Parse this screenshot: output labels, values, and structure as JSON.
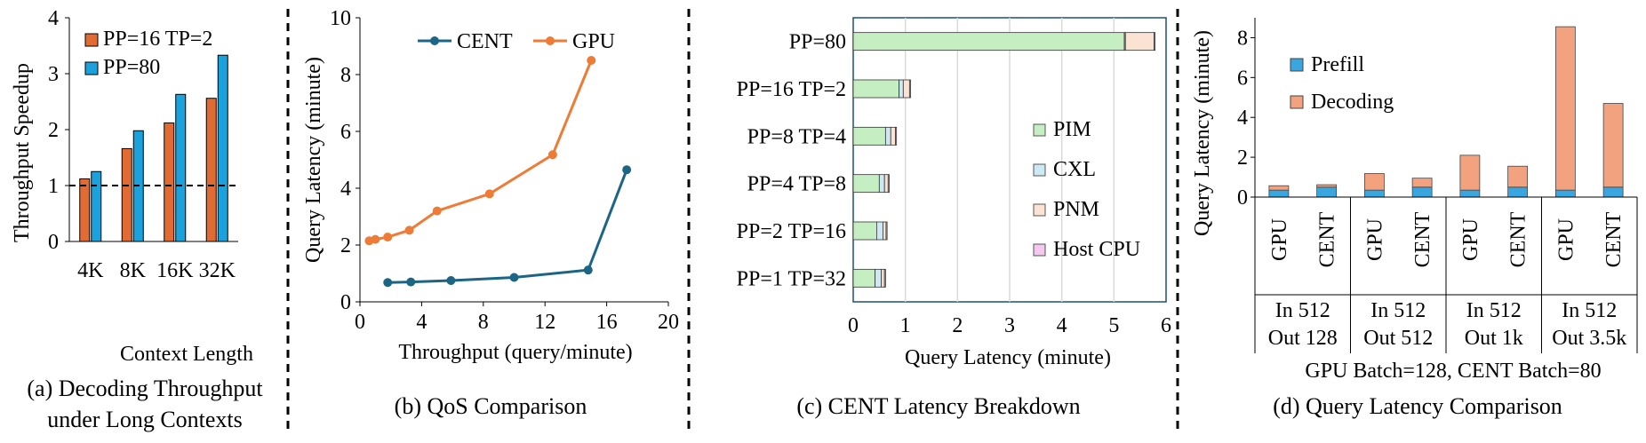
{
  "colors": {
    "orange": "#e06c33",
    "blue": "#1ba1dc",
    "cent_line": "#1d6584",
    "gpu_line": "#ee7b36",
    "pim": "#c6eec3",
    "cxl": "#cdeaf4",
    "pnm": "#fbe3d3",
    "host": "#f4c9f0",
    "prefill": "#3aa6df",
    "decoding": "#f2a27e",
    "frame": "#1f4e79"
  },
  "chart_data": [
    {
      "id": "a",
      "type": "bar",
      "caption": [
        "(a) Decoding Throughput",
        "under Long Contexts"
      ],
      "xlabel": "Context Length",
      "ylabel": "Throughput Speedup",
      "categories": [
        "4K",
        "8K",
        "16K",
        "32K"
      ],
      "yticks": [
        "0",
        "1",
        "2",
        "3",
        "4"
      ],
      "ylim": [
        0,
        4
      ],
      "baseline": 1,
      "series": [
        {
          "name": "PP=16 TP=2",
          "values": [
            1.12,
            1.66,
            2.12,
            2.56
          ]
        },
        {
          "name": "PP=80",
          "values": [
            1.25,
            1.98,
            2.63,
            3.33
          ]
        }
      ]
    },
    {
      "id": "b",
      "type": "line",
      "caption": "(b) QoS Comparison",
      "xlabel": "Throughput (query/minute)",
      "ylabel": "Query Latency (minute)",
      "xticks": [
        "0",
        "4",
        "8",
        "12",
        "16",
        "20"
      ],
      "yticks": [
        "0",
        "2",
        "4",
        "6",
        "8",
        "10"
      ],
      "xlim": [
        0,
        20
      ],
      "ylim": [
        0,
        10
      ],
      "series": [
        {
          "name": "CENT",
          "x": [
            1.8,
            3.3,
            5.9,
            10.0,
            14.8,
            17.3
          ],
          "y": [
            0.68,
            0.7,
            0.75,
            0.86,
            1.12,
            4.65
          ]
        },
        {
          "name": "GPU",
          "x": [
            0.6,
            1.0,
            1.8,
            3.2,
            5.0,
            8.4,
            12.5,
            15.0
          ],
          "y": [
            2.15,
            2.2,
            2.28,
            2.52,
            3.2,
            3.8,
            5.18,
            8.5
          ]
        }
      ]
    },
    {
      "id": "c",
      "type": "bar",
      "orientation": "horizontal-stacked",
      "caption": "(c) CENT Latency Breakdown",
      "xlabel": "Query Latency (minute)",
      "xticks": [
        "0",
        "1",
        "2",
        "3",
        "4",
        "5",
        "6"
      ],
      "xlim": [
        0,
        6
      ],
      "categories": [
        "PP=80",
        "PP=16 TP=2",
        "PP=8 TP=4",
        "PP=4 TP=8",
        "PP=2 TP=16",
        "PP=1 TP=32"
      ],
      "series": [
        {
          "name": "PIM",
          "values": [
            5.2,
            0.88,
            0.62,
            0.5,
            0.45,
            0.42
          ]
        },
        {
          "name": "CXL",
          "values": [
            0.02,
            0.08,
            0.1,
            0.1,
            0.12,
            0.12
          ]
        },
        {
          "name": "PNM",
          "values": [
            0.55,
            0.12,
            0.09,
            0.07,
            0.06,
            0.06
          ]
        },
        {
          "name": "Host CPU",
          "values": [
            0.02,
            0.02,
            0.02,
            0.02,
            0.02,
            0.02
          ]
        }
      ]
    },
    {
      "id": "d",
      "type": "bar",
      "orientation": "vertical-stacked",
      "caption": "(d) Query Latency Comparison",
      "ylabel": "Query Latency (minute)",
      "note": "GPU Batch=128, CENT Batch=80",
      "yticks": [
        "0",
        "2",
        "4",
        "6",
        "8"
      ],
      "ylim": [
        0,
        9
      ],
      "categories": [
        "GPU",
        "CENT",
        "GPU",
        "CENT",
        "GPU",
        "CENT",
        "GPU",
        "CENT"
      ],
      "groups": [
        [
          "In 512",
          "Out 128"
        ],
        [
          "In 512",
          "Out 512"
        ],
        [
          "In 512",
          "Out 1k"
        ],
        [
          "In 512",
          "Out 3.5k"
        ]
      ],
      "series": [
        {
          "name": "Prefill",
          "values": [
            0.35,
            0.5,
            0.35,
            0.5,
            0.35,
            0.5,
            0.35,
            0.5
          ]
        },
        {
          "name": "Decoding",
          "values": [
            0.22,
            0.12,
            0.83,
            0.45,
            1.75,
            1.05,
            8.2,
            4.2
          ]
        }
      ]
    }
  ]
}
